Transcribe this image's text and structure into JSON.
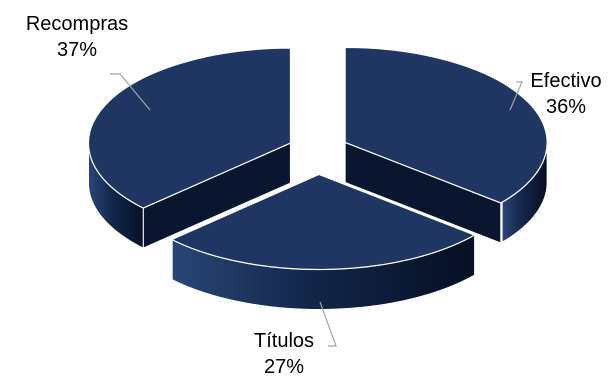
{
  "chart_data": {
    "type": "pie",
    "title": "",
    "slices": [
      {
        "name": "Efectivo",
        "value": 36,
        "label": "36%"
      },
      {
        "name": "Títulos",
        "value": 27,
        "label": "27%"
      },
      {
        "name": "Recompras",
        "value": 37,
        "label": "37%"
      }
    ],
    "exploded": true,
    "style_3d": true,
    "legend": "none"
  },
  "colors": {
    "top": "#1e3661",
    "side_light": "#1e3661",
    "side_dark": "#0a1630",
    "outline": "#ffffff",
    "leader": "#a6a6a6"
  }
}
